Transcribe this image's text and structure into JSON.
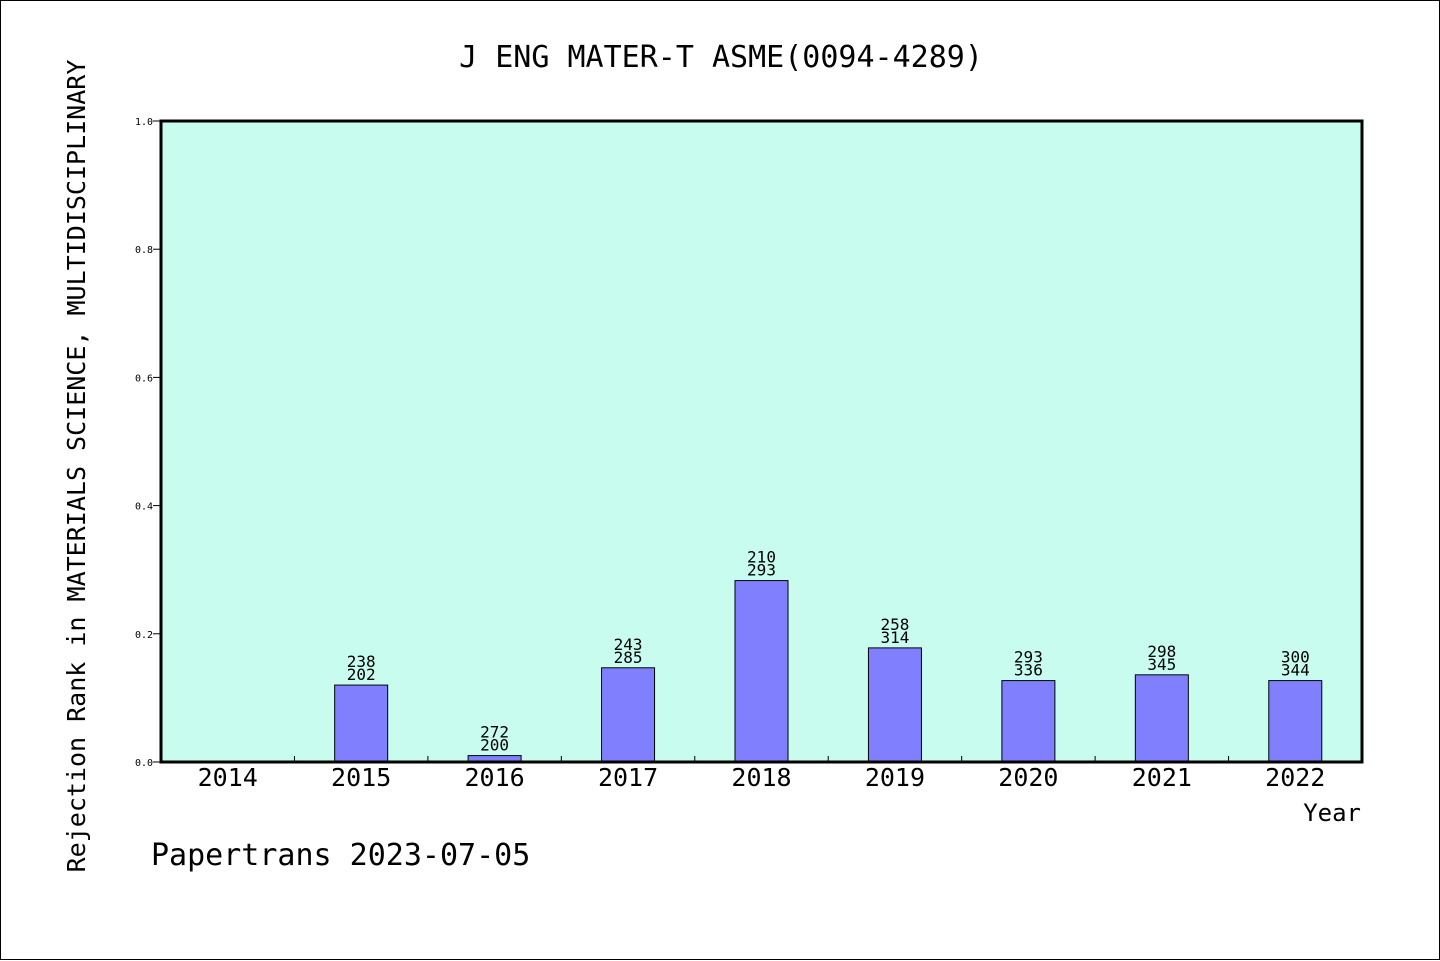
{
  "chart_data": {
    "type": "bar",
    "title": "J ENG MATER-T ASME(0094-4289)",
    "xlabel": "Year",
    "ylabel": "Rejection Rank in MATERIALS SCIENCE, MULTIDISCIPLINARY",
    "footer": "Papertrans 2023-07-05",
    "categories": [
      "2014",
      "2015",
      "2016",
      "2017",
      "2018",
      "2019",
      "2020",
      "2021",
      "2022"
    ],
    "values": [
      0,
      0.12,
      0.01,
      0.147,
      0.283,
      0.178,
      0.127,
      0.136,
      0.127
    ],
    "label_top": [
      "",
      "238",
      "272",
      "243",
      "210",
      "258",
      "293",
      "298",
      "300"
    ],
    "label_bottom": [
      "",
      "202",
      "200",
      "285",
      "293",
      "314",
      "336",
      "345",
      "344"
    ],
    "ylim": [
      0,
      1.0
    ],
    "yticks": [
      "0.0",
      "0.2",
      "0.4",
      "0.6",
      "0.8",
      "1.0"
    ],
    "grid": false,
    "colors": {
      "plot_background": "#c8fcee",
      "bar_fill": "#8080ff",
      "bar_stroke": "#000000"
    }
  }
}
